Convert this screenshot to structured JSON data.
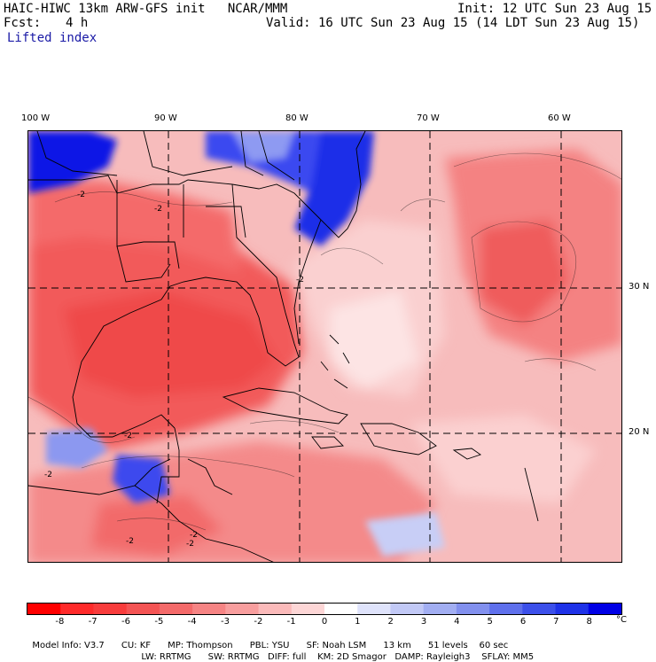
{
  "header": {
    "model_line": "HAIC-HIWC 13km ARW-GFS init   NCAR/MMM",
    "init_line": "Init: 12 UTC Sun 23 Aug 15",
    "fcst_label": "Fcst:",
    "fcst_value": "4 h",
    "valid_line": "Valid: 16 UTC Sun 23 Aug 15 (14 LDT Sun 23 Aug 15)",
    "field_name": "Lifted index"
  },
  "map": {
    "longitude_labels": [
      "100 W",
      "90 W",
      "80 W",
      "70 W",
      "60 W"
    ],
    "latitude_labels": [
      "30 N",
      "20 N"
    ],
    "contour_labels": [
      "-2",
      "-2",
      "-2",
      "-2",
      "-2",
      "-2",
      "-2",
      "-2"
    ],
    "colors": {
      "warm_strong": "#ff2020",
      "warm_mid": "#f46464",
      "warm_light": "#f8a8a8",
      "neutral": "#fde4e4",
      "cool_light": "#b8c2f4",
      "cool_strong": "#0a14e6"
    }
  },
  "colorbar": {
    "unit": "°C",
    "ticks": [
      "-8",
      "-7",
      "-6",
      "-5",
      "-4",
      "-3",
      "-2",
      "-1",
      "0",
      "1",
      "2",
      "3",
      "4",
      "5",
      "6",
      "7",
      "8"
    ],
    "colors": [
      "#ff0000",
      "#ff2a2a",
      "#f83c3c",
      "#f45454",
      "#f46a6a",
      "#f68484",
      "#f89e9e",
      "#fbbaba",
      "#fdd6d6",
      "#ffffff",
      "#dfe3fb",
      "#c2c9f6",
      "#a2aef2",
      "#8290ee",
      "#5f70ec",
      "#3c50ea",
      "#1e32e8",
      "#0000e6"
    ]
  },
  "info": {
    "line1": [
      "Model Info: V3.7",
      "CU: KF",
      "MP: Thompson",
      "PBL: YSU",
      "SF: Noah LSM",
      "13 km",
      "51 levels",
      "60 sec"
    ],
    "line2": [
      "LW: RRTMG",
      "SW: RRTMG",
      "DIFF: full",
      "KM: 2D Smagor",
      "DAMP: Rayleigh3",
      "SFLAY: MM5"
    ]
  }
}
